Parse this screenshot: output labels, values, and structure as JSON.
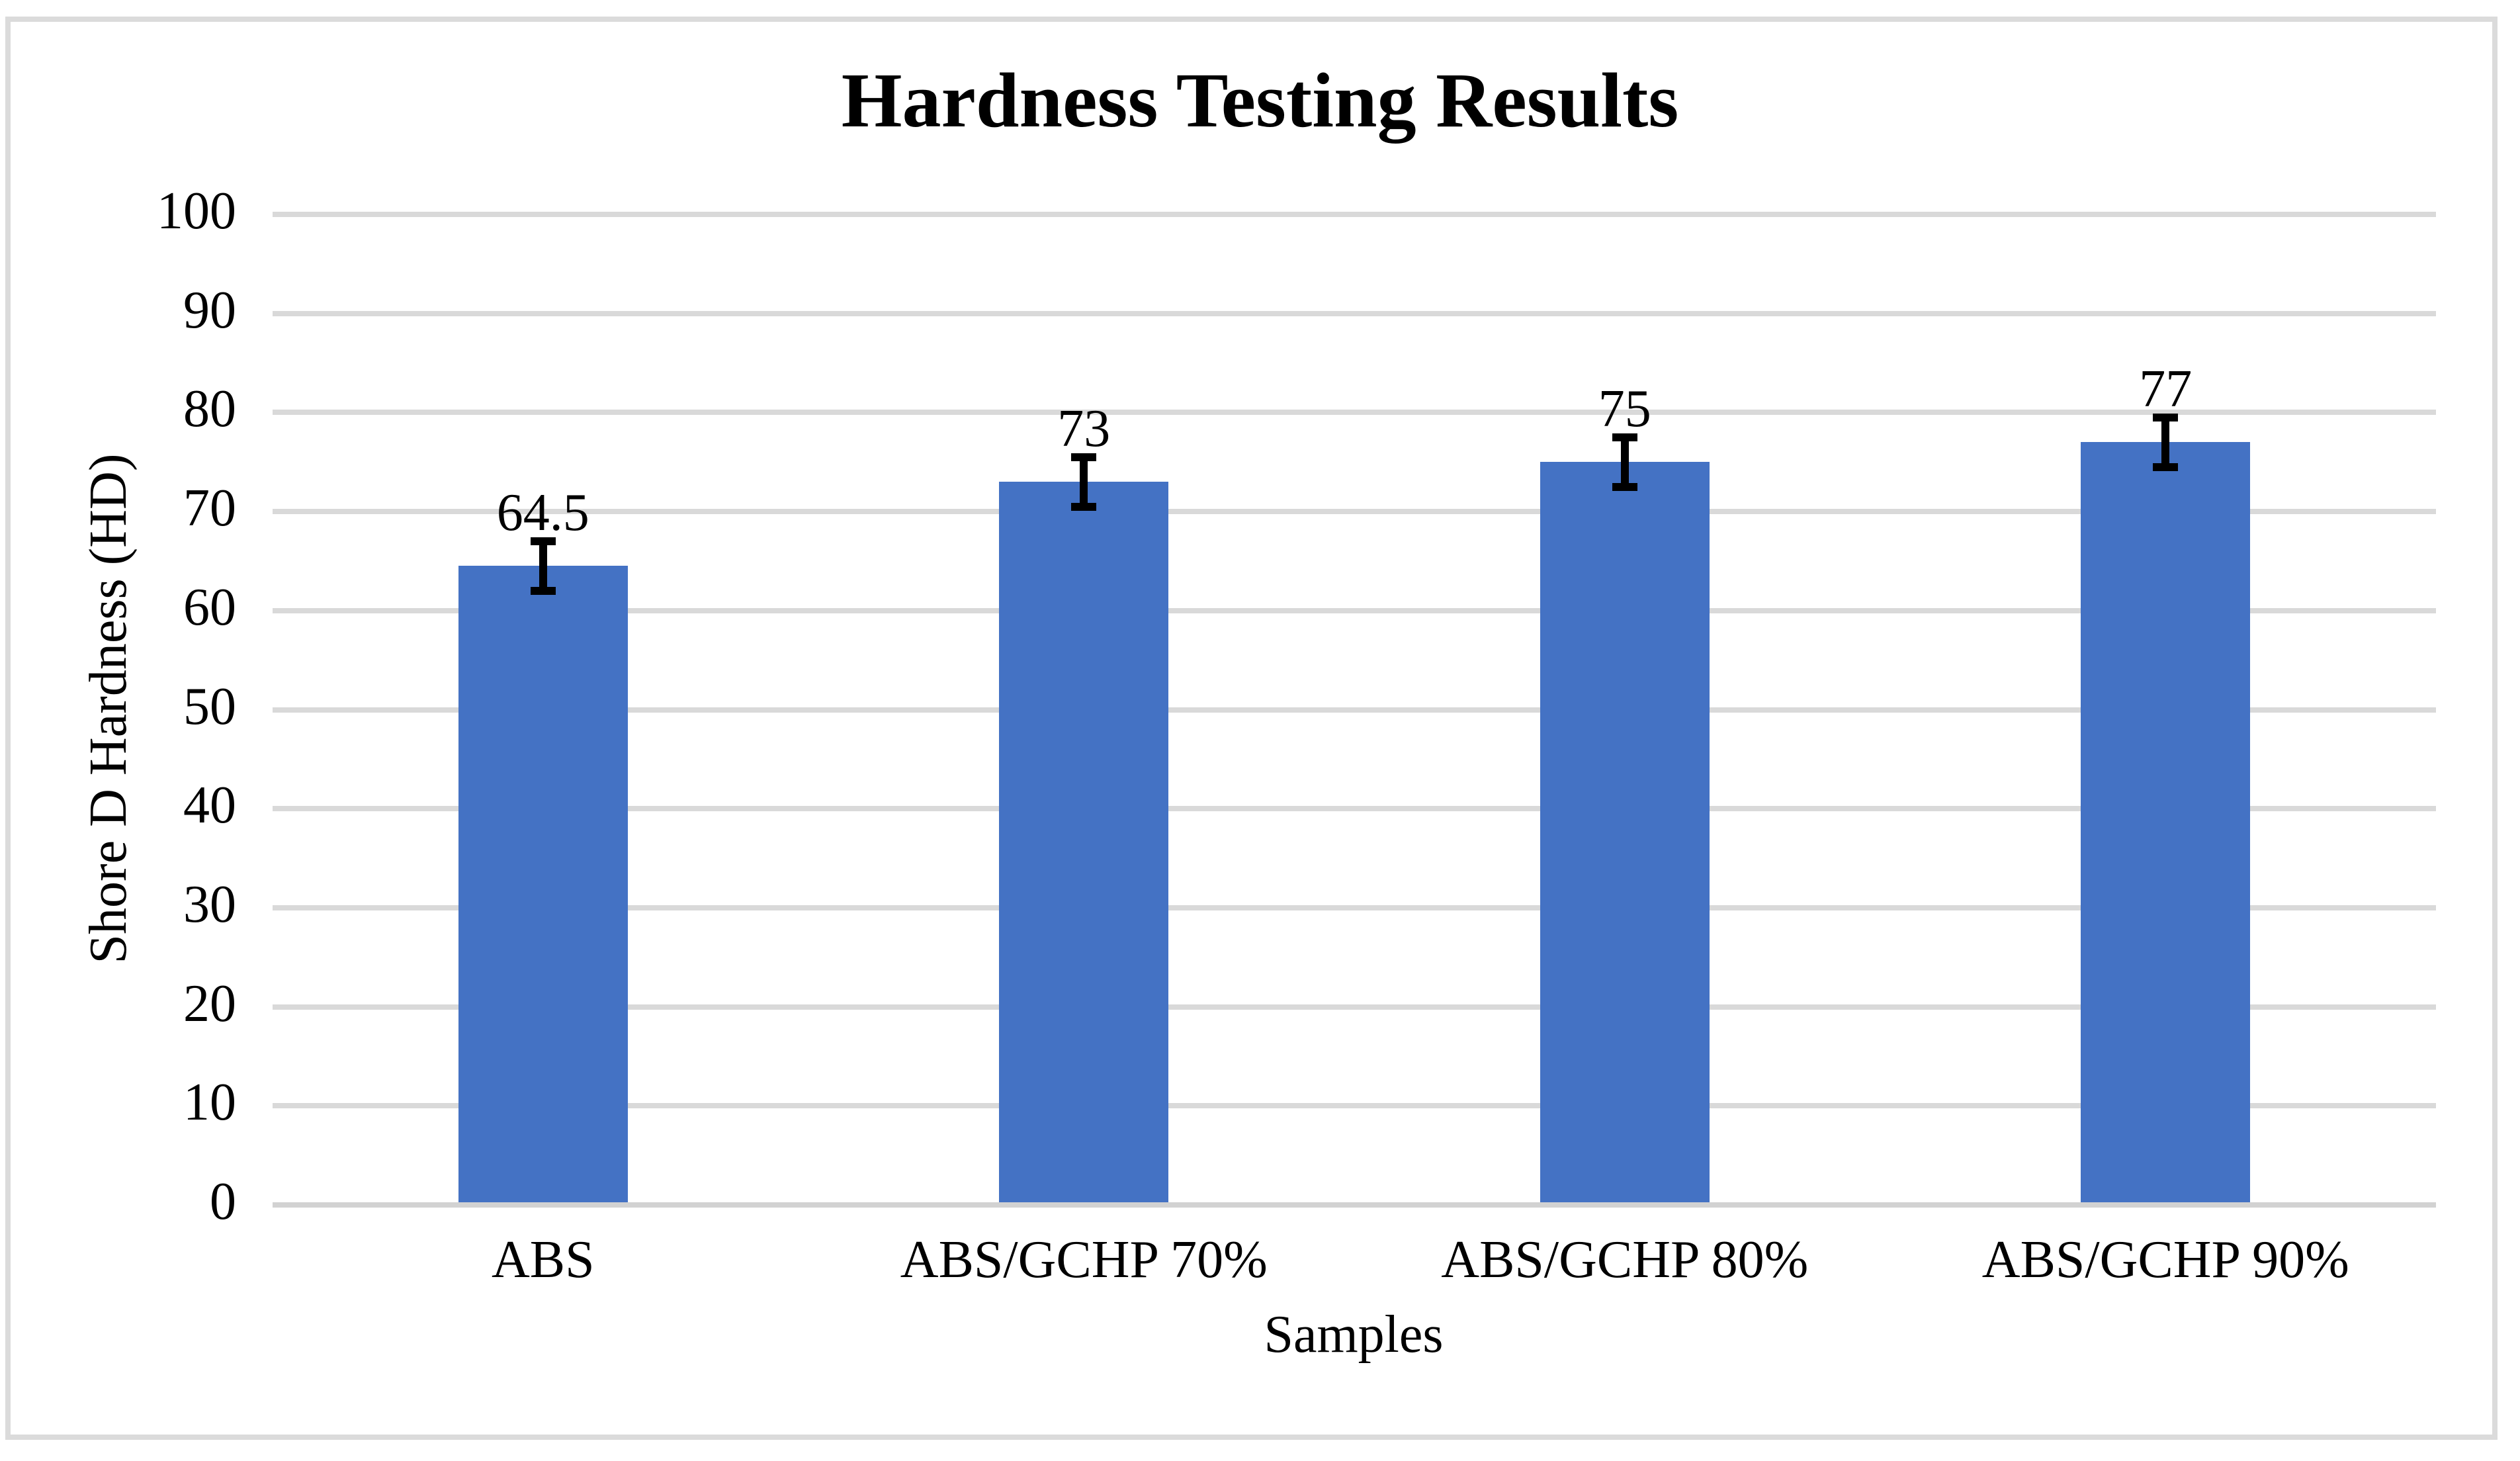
{
  "chart_data": {
    "type": "bar",
    "title": "Hardness Testing Results",
    "xlabel": "Samples",
    "ylabel": "Shore D Hardness (HD)",
    "categories": [
      "ABS",
      "ABS/GCHP 70%",
      "ABS/GCHP 80%",
      "ABS/GCHP 90%"
    ],
    "values": [
      64.5,
      73,
      75,
      77
    ],
    "value_labels": [
      "64.5",
      "73",
      "75",
      "77"
    ],
    "error_bars": {
      "type": "symmetric",
      "value": 2.5
    },
    "ylim": [
      0,
      100
    ],
    "yticks": [
      0,
      10,
      20,
      30,
      40,
      50,
      60,
      70,
      80,
      90,
      100
    ],
    "ytick_labels": [
      "0",
      "10",
      "20",
      "30",
      "40",
      "50",
      "60",
      "70",
      "80",
      "90",
      "100"
    ],
    "grid": "horizontal",
    "legend": "none",
    "colors": {
      "bar": "#4472C4",
      "gridline": "#D9D9D9",
      "axis_line": "#D2D2D2",
      "chart_border": "#DBDBDB",
      "text": "#000000",
      "background": "#FFFFFF"
    }
  }
}
